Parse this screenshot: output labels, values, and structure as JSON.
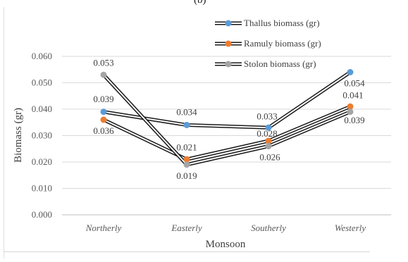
{
  "figure_label": "(b)",
  "chart_data": {
    "type": "line",
    "categories": [
      "Northerly",
      "Easterly",
      "Southerly",
      "Westerly"
    ],
    "series": [
      {
        "name": "Thallus biomass (gr)",
        "color": "#5b9bd5",
        "values": [
          0.039,
          0.034,
          0.033,
          0.054
        ],
        "labels": [
          "0.039",
          "0.034",
          "0.033",
          "0.054"
        ]
      },
      {
        "name": "Ramuly biomass (gr)",
        "color": "#ed7d31",
        "values": [
          0.036,
          0.021,
          0.028,
          0.041
        ],
        "labels": [
          "0.036",
          "0.021",
          "0.028",
          "0.041"
        ]
      },
      {
        "name": "Stolon biomass (gr)",
        "color": "#a5a5a5",
        "values": [
          0.053,
          0.019,
          0.026,
          0.039
        ],
        "labels": [
          "0.053",
          "0.019",
          "0.026",
          "0.039"
        ]
      }
    ],
    "xlabel": "Monsoon",
    "ylabel": "Biomass (gr)",
    "ylim": [
      0.0,
      0.06
    ],
    "yticks": [
      0.0,
      0.01,
      0.02,
      0.03,
      0.04,
      0.05,
      0.06
    ],
    "ytick_labels": [
      "0.000",
      "0.010",
      "0.020",
      "0.030",
      "0.040",
      "0.050",
      "0.060"
    ],
    "grid": true,
    "legend_position": "top-right"
  }
}
